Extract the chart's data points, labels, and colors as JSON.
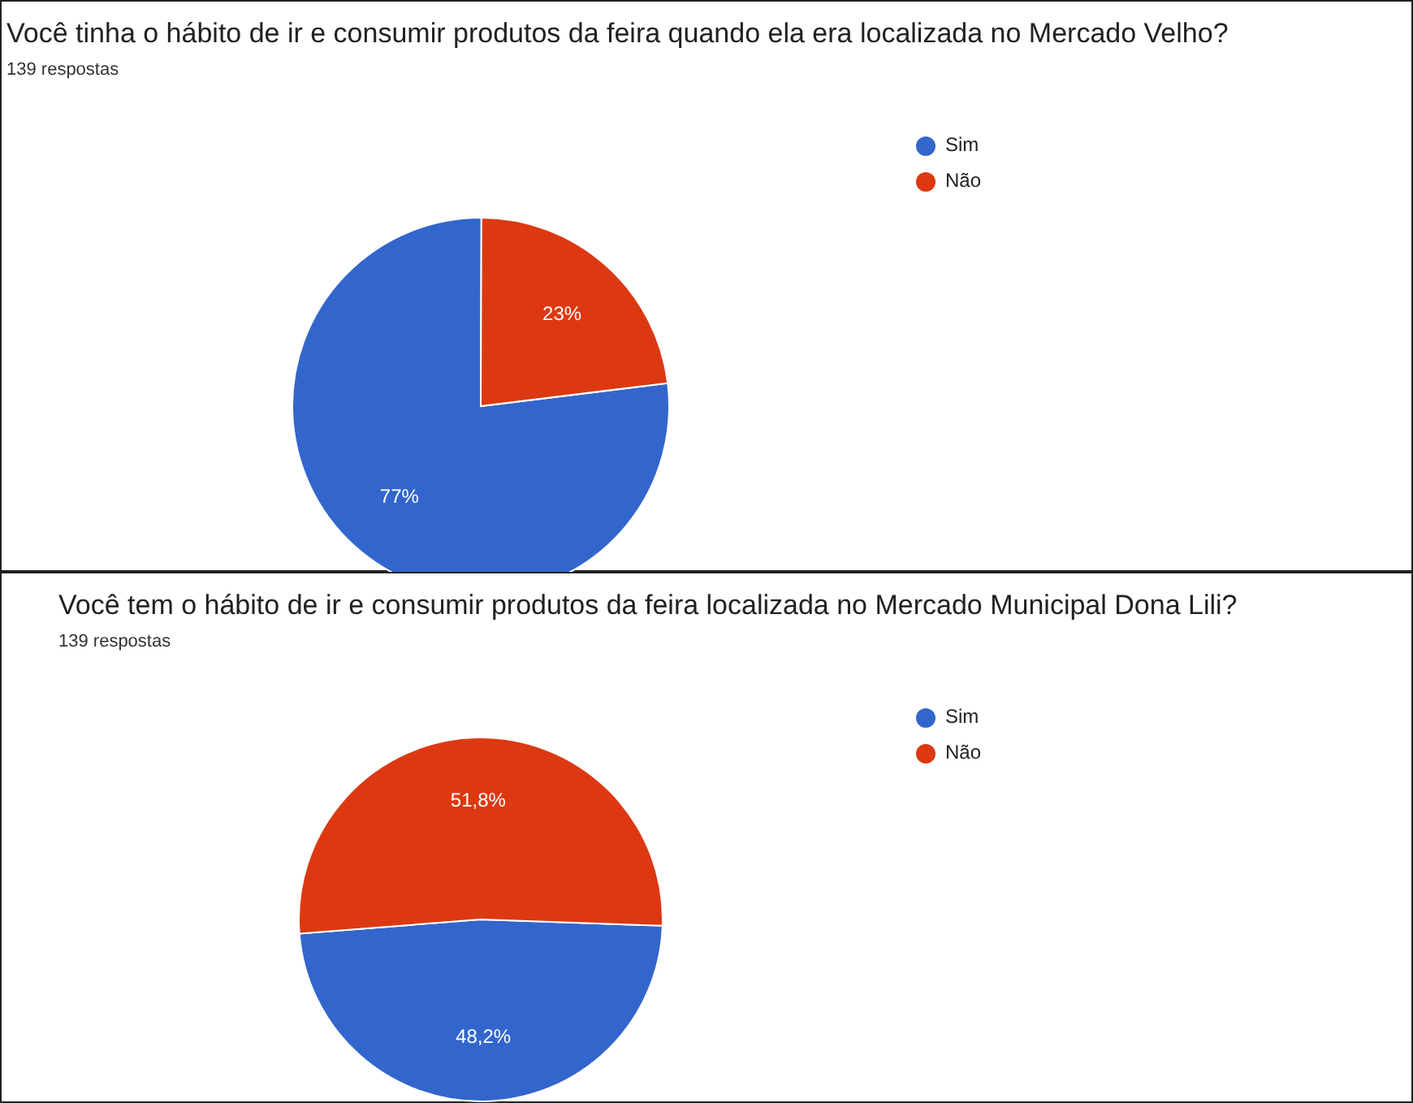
{
  "chart_data": [
    {
      "type": "pie",
      "title": "Você tinha o hábito de ir e consumir produtos da feira quando ela era localizada no Mercado Velho?",
      "subtitle": "139 respostas",
      "categories": [
        "Sim",
        "Não"
      ],
      "values": [
        77,
        23
      ],
      "colors": [
        "#3366cc",
        "#dc3912"
      ],
      "value_labels": [
        "77%",
        "23%"
      ],
      "legend": "right"
    },
    {
      "type": "pie",
      "title": "Você tem o hábito de ir e consumir produtos da feira localizada no Mercado Municipal Dona Lili?",
      "subtitle": "139 respostas",
      "categories": [
        "Sim",
        "Não"
      ],
      "values": [
        48.2,
        51.8
      ],
      "colors": [
        "#3366cc",
        "#dc3912"
      ],
      "value_labels": [
        "48,2%",
        "51,8%"
      ],
      "legend": "right"
    }
  ]
}
